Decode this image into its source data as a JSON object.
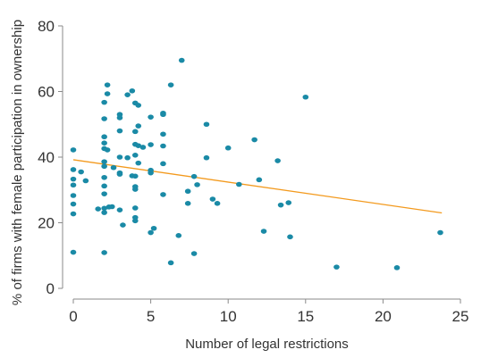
{
  "chart_data": {
    "type": "scatter",
    "title": "",
    "xlabel": "Number of legal restrictions",
    "ylabel": "% of firms with female participation in ownership",
    "xlim": [
      0,
      25
    ],
    "ylim": [
      0,
      80
    ],
    "x_ticks": [
      0,
      5,
      10,
      15,
      20,
      25
    ],
    "y_ticks": [
      0,
      20,
      40,
      60,
      80
    ],
    "grid": false,
    "legend": "none",
    "colors": {
      "points": "#1a8aa6",
      "trend": "#f39a1e",
      "axis": "#8a8a8a"
    },
    "trendline": {
      "x": [
        0,
        23.8
      ],
      "y": [
        39.2,
        23.0
      ]
    },
    "points": [
      [
        0,
        42.2
      ],
      [
        0,
        36.2
      ],
      [
        0,
        33.3
      ],
      [
        0,
        31.5
      ],
      [
        0,
        28.3
      ],
      [
        0,
        25.7
      ],
      [
        0,
        22.7
      ],
      [
        0,
        11.0
      ],
      [
        0.5,
        35.5
      ],
      [
        0.8,
        32.8
      ],
      [
        1.6,
        24.2
      ],
      [
        2,
        56.7
      ],
      [
        2,
        51.7
      ],
      [
        2,
        46.2
      ],
      [
        2,
        44.3
      ],
      [
        2,
        42.6
      ],
      [
        2,
        38.6
      ],
      [
        2,
        37.2
      ],
      [
        2,
        33.8
      ],
      [
        2,
        31.2
      ],
      [
        2,
        28.8
      ],
      [
        2,
        24.4
      ],
      [
        2,
        23.1
      ],
      [
        2,
        10.9
      ],
      [
        2.2,
        62.0
      ],
      [
        2.2,
        59.3
      ],
      [
        2.2,
        42.2
      ],
      [
        2.3,
        24.8
      ],
      [
        2.5,
        24.9
      ],
      [
        2.6,
        36.8
      ],
      [
        3,
        53.0
      ],
      [
        3,
        52.0
      ],
      [
        3,
        48.0
      ],
      [
        3,
        40.0
      ],
      [
        3,
        35.2
      ],
      [
        3,
        34.8
      ],
      [
        3,
        23.9
      ],
      [
        3.2,
        19.3
      ],
      [
        3.5,
        59.0
      ],
      [
        3.5,
        39.8
      ],
      [
        3.8,
        60.2
      ],
      [
        3.8,
        34.3
      ],
      [
        4,
        56.5
      ],
      [
        4,
        47.8
      ],
      [
        4,
        43.9
      ],
      [
        4,
        40.6
      ],
      [
        4,
        34.2
      ],
      [
        4,
        31.0
      ],
      [
        4,
        30.2
      ],
      [
        4,
        24.5
      ],
      [
        4,
        21.6
      ],
      [
        4,
        20.6
      ],
      [
        4.2,
        55.8
      ],
      [
        4.2,
        49.5
      ],
      [
        4.2,
        43.5
      ],
      [
        4.2,
        38.2
      ],
      [
        4.5,
        43.0
      ],
      [
        5,
        52.2
      ],
      [
        5,
        43.8
      ],
      [
        5,
        36.0
      ],
      [
        5,
        35.2
      ],
      [
        5,
        17.0
      ],
      [
        5.2,
        18.3
      ],
      [
        5.8,
        53.4
      ],
      [
        5.8,
        53.0
      ],
      [
        5.8,
        47.0
      ],
      [
        5.8,
        43.4
      ],
      [
        5.8,
        38.0
      ],
      [
        5.8,
        28.6
      ],
      [
        6.3,
        62.0
      ],
      [
        6.3,
        7.8
      ],
      [
        6.8,
        16.1
      ],
      [
        7,
        69.5
      ],
      [
        7.4,
        29.6
      ],
      [
        7.4,
        25.9
      ],
      [
        7.8,
        34.1
      ],
      [
        7.8,
        10.6
      ],
      [
        8,
        31.6
      ],
      [
        8.6,
        50.0
      ],
      [
        8.6,
        39.8
      ],
      [
        9,
        27.2
      ],
      [
        9.3,
        25.9
      ],
      [
        10,
        42.8
      ],
      [
        10.7,
        31.7
      ],
      [
        11.7,
        45.3
      ],
      [
        12,
        33.1
      ],
      [
        12.3,
        17.4
      ],
      [
        13.2,
        38.9
      ],
      [
        13.4,
        25.4
      ],
      [
        13.9,
        26.1
      ],
      [
        14,
        15.7
      ],
      [
        15,
        58.3
      ],
      [
        17,
        6.5
      ],
      [
        20.9,
        6.3
      ],
      [
        23.7,
        17.0
      ]
    ]
  }
}
